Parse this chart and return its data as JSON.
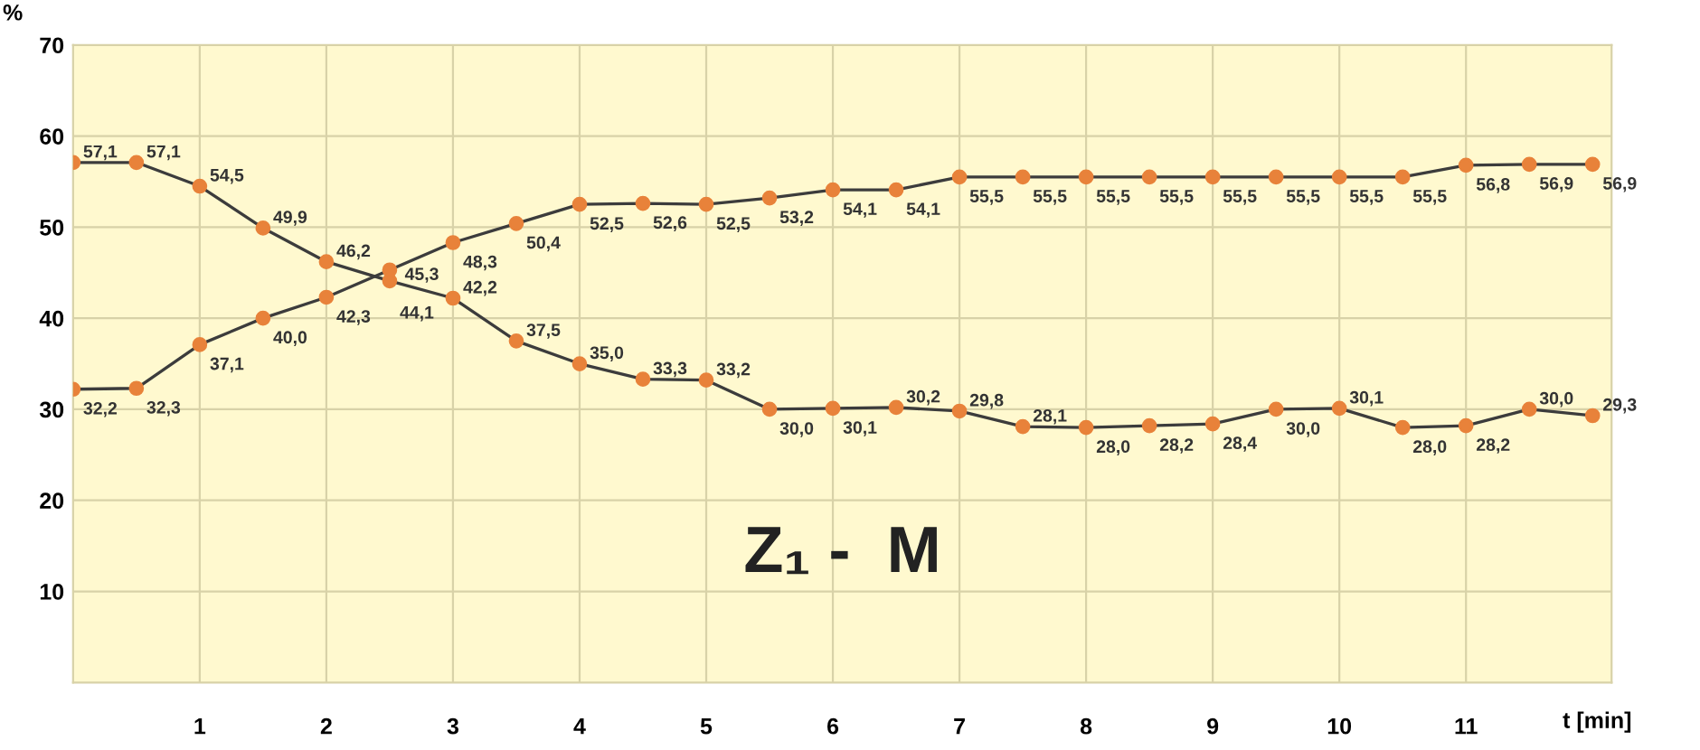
{
  "chart_data": {
    "type": "line",
    "x": [
      0,
      0.5,
      1,
      1.5,
      2,
      2.5,
      3,
      3.5,
      4,
      4.5,
      5,
      5.5,
      6,
      6.5,
      7,
      7.5,
      8,
      8.5,
      9,
      9.5,
      10,
      10.5,
      11,
      11.5,
      12
    ],
    "series": [
      {
        "color": "#e8823a",
        "values": [
          57.1,
          57.1,
          54.5,
          49.9,
          46.2,
          44.1,
          42.2,
          37.5,
          35.0,
          33.3,
          33.2,
          30.0,
          30.1,
          30.2,
          29.8,
          28.1,
          28.0,
          28.2,
          28.4,
          30.0,
          30.1,
          28.0,
          28.2,
          30.0,
          29.3
        ],
        "value_labels": [
          "57,1",
          "57,1",
          "54,5",
          "49,9",
          "46,2",
          "44,1",
          "42,2",
          "37,5",
          "35,0",
          "33,3",
          "33,2",
          "30,0",
          "30,1",
          "30,2",
          "29,8",
          "28,1",
          "28,0",
          "28,2",
          "28,4",
          "30,0",
          "30,1",
          "28,0",
          "28,2",
          "30,0",
          "29,3"
        ]
      },
      {
        "color": "#e8823a",
        "values": [
          32.2,
          32.3,
          37.1,
          40.0,
          42.3,
          45.3,
          48.3,
          50.4,
          52.5,
          52.6,
          52.5,
          53.2,
          54.1,
          54.1,
          55.5,
          55.5,
          55.5,
          55.5,
          55.5,
          55.5,
          55.5,
          55.5,
          56.8,
          56.9,
          56.9
        ],
        "value_labels": [
          "32,2",
          "32,3",
          "37,1",
          "40,0",
          "42,3",
          "45,3",
          "48,3",
          "50,4",
          "52,5",
          "52,6",
          "52,5",
          "53,2",
          "54,1",
          "54,1",
          "55,5",
          "55,5",
          "55,5",
          "55,5",
          "55,5",
          "55,5",
          "55,5",
          "55,5",
          "56,8",
          "56,9",
          "56,9"
        ]
      }
    ],
    "xlabel": "t [min]",
    "ylabel": "%",
    "annotations": [
      "Z₁ -  M"
    ],
    "xlim": [
      0,
      12.15
    ],
    "ylim": [
      0,
      70
    ],
    "xticks": [
      1,
      2,
      3,
      4,
      5,
      6,
      7,
      8,
      9,
      10,
      11
    ],
    "yticks": [
      10,
      20,
      30,
      40,
      50,
      60,
      70
    ],
    "grid": true,
    "marker": "circle",
    "line_style": "solid"
  }
}
